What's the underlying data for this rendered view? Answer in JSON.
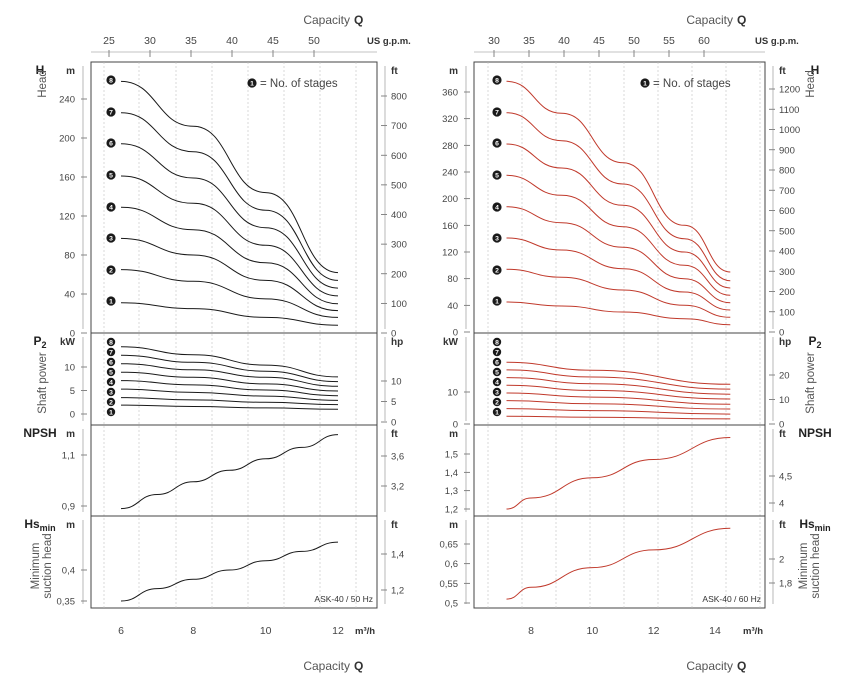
{
  "charts": [
    {
      "x_title": "Capacity",
      "x_title_symbol": "Q",
      "us_unit": "US g.p.m.",
      "metric_unit": "m³/h",
      "x_ticks_metric": [
        6,
        8,
        10,
        12
      ],
      "x_ticks_us": [
        25,
        30,
        35,
        40,
        45,
        50
      ],
      "stage_legend_badge": "1",
      "stage_legend_text": "= No. of stages",
      "model_label": "ASK-40 / 50 Hz",
      "panels": {
        "head": {
          "label": "Head",
          "symbol": "H",
          "left_unit": "m",
          "right_unit": "ft",
          "left_ticks": [
            "0",
            "40",
            "80",
            "120",
            "160",
            "200",
            "240"
          ],
          "right_ticks": [
            "0",
            "100",
            "200",
            "300",
            "400",
            "500",
            "600",
            "700",
            "800"
          ]
        },
        "power": {
          "label": "Shaft  power",
          "symbol": "P",
          "symbol_sub": "2",
          "left_unit": "kW",
          "right_unit": "hp",
          "left_ticks": [
            "0",
            "5",
            "10"
          ],
          "right_ticks": [
            "0",
            "5",
            "10"
          ]
        },
        "npsh": {
          "symbol": "NPSH",
          "left_unit": "m",
          "right_unit": "ft",
          "left_ticks": [
            "0,9",
            "1,1"
          ],
          "right_ticks": [
            "3,2",
            "3,6"
          ]
        },
        "hs": {
          "label": "Minimum suction head",
          "symbol": "Hs",
          "symbol_sub": "min",
          "left_unit": "m",
          "right_unit": "ft",
          "left_ticks": [
            "0,35",
            "0,4"
          ],
          "right_ticks": [
            "1,2",
            "1,4"
          ]
        }
      },
      "stage_badges": [
        "8",
        "7",
        "6",
        "5",
        "4",
        "3",
        "2",
        "1"
      ]
    },
    {
      "x_title": "Capacity",
      "x_title_symbol": "Q",
      "us_unit": "US g.p.m.",
      "metric_unit": "m³/h",
      "x_ticks_metric": [
        8,
        10,
        12,
        14
      ],
      "x_ticks_us": [
        30,
        35,
        40,
        45,
        50,
        55,
        60
      ],
      "stage_legend_badge": "1",
      "stage_legend_text": "= No. of stages",
      "model_label": "ASK-40 / 60 Hz",
      "panels": {
        "head": {
          "label": "Head",
          "symbol": "H",
          "left_unit": "m",
          "right_unit": "ft",
          "left_ticks": [
            "0",
            "40",
            "80",
            "120",
            "160",
            "200",
            "240",
            "280",
            "320",
            "360"
          ],
          "right_ticks": [
            "0",
            "100",
            "200",
            "300",
            "400",
            "500",
            "600",
            "700",
            "800",
            "900",
            "1000",
            "1100",
            "1200"
          ]
        },
        "power": {
          "label": "Shaft  power",
          "symbol": "P",
          "symbol_sub": "2",
          "left_unit": "kW",
          "right_unit": "hp",
          "left_ticks": [
            "0",
            "10"
          ],
          "right_ticks": [
            "0",
            "10",
            "20"
          ]
        },
        "npsh": {
          "symbol": "NPSH",
          "left_unit": "m",
          "right_unit": "ft",
          "left_ticks": [
            "1,2",
            "1,3",
            "1,4",
            "1,5"
          ],
          "right_ticks": [
            "4",
            "4,5"
          ]
        },
        "hs": {
          "label": "Minimum suction head",
          "symbol": "Hs",
          "symbol_sub": "min",
          "left_unit": "m",
          "right_unit": "ft",
          "left_ticks": [
            "0,5",
            "0,55",
            "0,6",
            "0,65"
          ],
          "right_ticks": [
            "1,8",
            "2"
          ]
        }
      },
      "stage_badges": [
        "8",
        "7",
        "6",
        "5",
        "4",
        "3",
        "2",
        "1"
      ]
    }
  ],
  "chart_data": [
    {
      "type": "line",
      "title": "ASK-40 / 50 Hz",
      "color": "#1a1a1a",
      "x_unit": "m³/h",
      "xlim": [
        5.5,
        12.8
      ],
      "subplots": [
        {
          "name": "Head",
          "ylabel": "H [m]",
          "ylim": [
            0,
            265
          ],
          "series": [
            {
              "name": "1",
              "x": [
                6,
                8,
                10,
                12
              ],
              "y": [
                31,
                25,
                16,
                8
              ]
            },
            {
              "name": "2",
              "x": [
                6,
                8,
                10,
                12
              ],
              "y": [
                65,
                53,
                35,
                16
              ]
            },
            {
              "name": "3",
              "x": [
                6,
                8,
                10,
                12
              ],
              "y": [
                97,
                80,
                54,
                23
              ]
            },
            {
              "name": "4",
              "x": [
                6,
                8,
                10,
                12
              ],
              "y": [
                129,
                106,
                72,
                30
              ]
            },
            {
              "name": "5",
              "x": [
                6,
                8,
                10,
                12
              ],
              "y": [
                161,
                133,
                90,
                38
              ]
            },
            {
              "name": "6",
              "x": [
                6,
                8,
                10,
                12
              ],
              "y": [
                194,
                159,
                108,
                46
              ]
            },
            {
              "name": "7",
              "x": [
                6,
                8,
                10,
                12
              ],
              "y": [
                226,
                186,
                126,
                54
              ]
            },
            {
              "name": "8",
              "x": [
                6,
                8,
                10,
                12
              ],
              "y": [
                258,
                212,
                144,
                62
              ]
            }
          ]
        },
        {
          "name": "Shaft power",
          "ylabel": "P2 [kW]",
          "ylim": [
            0,
            15
          ],
          "series": [
            {
              "name": "1",
              "x": [
                6,
                8,
                10,
                12
              ],
              "y": [
                1.9,
                1.6,
                1.3,
                1.0
              ]
            },
            {
              "name": "2",
              "x": [
                6,
                8,
                10,
                12
              ],
              "y": [
                3.5,
                3.0,
                2.5,
                2.0
              ]
            },
            {
              "name": "3",
              "x": [
                6,
                8,
                10,
                12
              ],
              "y": [
                5.3,
                4.6,
                3.8,
                2.9
              ]
            },
            {
              "name": "4",
              "x": [
                6,
                8,
                10,
                12
              ],
              "y": [
                7.1,
                6.2,
                5.1,
                3.9
              ]
            },
            {
              "name": "5",
              "x": [
                6,
                8,
                10,
                12
              ],
              "y": [
                8.9,
                7.8,
                6.4,
                4.9
              ]
            },
            {
              "name": "6",
              "x": [
                6,
                8,
                10,
                12
              ],
              "y": [
                10.7,
                9.4,
                7.8,
                5.9
              ]
            },
            {
              "name": "7",
              "x": [
                6,
                8,
                10,
                12
              ],
              "y": [
                12.5,
                11.0,
                9.1,
                6.9
              ]
            },
            {
              "name": "8",
              "x": [
                6,
                8,
                10,
                12
              ],
              "y": [
                14.3,
                12.6,
                10.4,
                7.9
              ]
            }
          ]
        },
        {
          "name": "NPSH",
          "ylabel": "NPSH [m]",
          "ylim": [
            0.85,
            1.2
          ],
          "series": [
            {
              "x": [
                6,
                7,
                8,
                9,
                10,
                11,
                12
              ],
              "y": [
                0.89,
                0.945,
                0.995,
                1.04,
                1.085,
                1.13,
                1.18
              ]
            }
          ]
        },
        {
          "name": "Minimum suction head",
          "ylabel": "Hs min [m]",
          "ylim": [
            0.34,
            0.46
          ],
          "series": [
            {
              "x": [
                6,
                7,
                8,
                9,
                10,
                11,
                12
              ],
              "y": [
                0.35,
                0.37,
                0.385,
                0.4,
                0.415,
                0.43,
                0.445
              ]
            }
          ]
        }
      ]
    },
    {
      "type": "line",
      "title": "ASK-40 / 60 Hz",
      "color": "#c0392b",
      "x_unit": "m³/h",
      "xlim": [
        6.5,
        15.2
      ],
      "subplots": [
        {
          "name": "Head",
          "ylabel": "H [m]",
          "ylim": [
            0,
            390
          ],
          "series": [
            {
              "name": "1",
              "x": [
                7.2,
                9,
                11,
                13,
                14.5
              ],
              "y": [
                45,
                39,
                30,
                20,
                11
              ]
            },
            {
              "name": "2",
              "x": [
                7.2,
                9,
                11,
                13,
                14.5
              ],
              "y": [
                94,
                82,
                63,
                40,
                22
              ]
            },
            {
              "name": "3",
              "x": [
                7.2,
                9,
                11,
                13,
                14.5
              ],
              "y": [
                141,
                123,
                95,
                60,
                33
              ]
            },
            {
              "name": "4",
              "x": [
                7.2,
                9,
                11,
                13,
                14.5
              ],
              "y": [
                188,
                164,
                127,
                80,
                44
              ]
            },
            {
              "name": "5",
              "x": [
                7.2,
                9,
                11,
                13,
                14.5
              ],
              "y": [
                235,
                205,
                158,
                100,
                55
              ]
            },
            {
              "name": "6",
              "x": [
                7.2,
                9,
                11,
                13,
                14.5
              ],
              "y": [
                282,
                246,
                190,
                120,
                66
              ]
            },
            {
              "name": "7",
              "x": [
                7.2,
                9,
                11,
                13,
                14.5
              ],
              "y": [
                329,
                287,
                222,
                140,
                77
              ]
            },
            {
              "name": "8",
              "x": [
                7.2,
                9,
                11,
                13,
                14.5
              ],
              "y": [
                376,
                328,
                254,
                160,
                90
              ]
            }
          ]
        },
        {
          "name": "Shaft power",
          "ylabel": "P2 [kW]",
          "ylim": [
            0,
            21
          ],
          "series": [
            {
              "name": "1",
              "x": [
                7.2,
                10,
                14.5
              ],
              "y": [
                2.4,
                2.1,
                1.6
              ]
            },
            {
              "name": "2",
              "x": [
                7.2,
                10,
                14.5
              ],
              "y": [
                4.8,
                4.2,
                3.1
              ]
            },
            {
              "name": "3",
              "x": [
                7.2,
                10,
                14.5
              ],
              "y": [
                7.3,
                6.3,
                4.7
              ]
            },
            {
              "name": "4",
              "x": [
                7.2,
                10,
                14.5
              ],
              "y": [
                9.7,
                8.4,
                6.2
              ]
            },
            {
              "name": "5",
              "x": [
                7.2,
                10,
                14.5
              ],
              "y": [
                12.1,
                10.5,
                7.8
              ]
            },
            {
              "name": "6",
              "x": [
                7.2,
                10,
                14.5
              ],
              "y": [
                14.5,
                12.6,
                9.3
              ]
            },
            {
              "name": "7",
              "x": [
                7.2,
                10,
                14.5
              ],
              "y": [
                16.9,
                14.7,
                10.9
              ]
            },
            {
              "name": "8",
              "x": [
                7.2,
                10,
                14.5
              ],
              "y": [
                19.3,
                16.8,
                12.4
              ]
            }
          ]
        },
        {
          "name": "NPSH",
          "ylabel": "NPSH [m]",
          "ylim": [
            1.15,
            1.6
          ],
          "series": [
            {
              "x": [
                7.2,
                8,
                10,
                12,
                14.5
              ],
              "y": [
                1.2,
                1.26,
                1.37,
                1.47,
                1.59
              ]
            }
          ]
        },
        {
          "name": "Minimum suction head",
          "ylabel": "Hs min [m]",
          "ylim": [
            0.49,
            0.7
          ],
          "series": [
            {
              "x": [
                7.2,
                8,
                10,
                12,
                14.5
              ],
              "y": [
                0.51,
                0.54,
                0.59,
                0.635,
                0.69
              ]
            }
          ]
        }
      ]
    }
  ]
}
